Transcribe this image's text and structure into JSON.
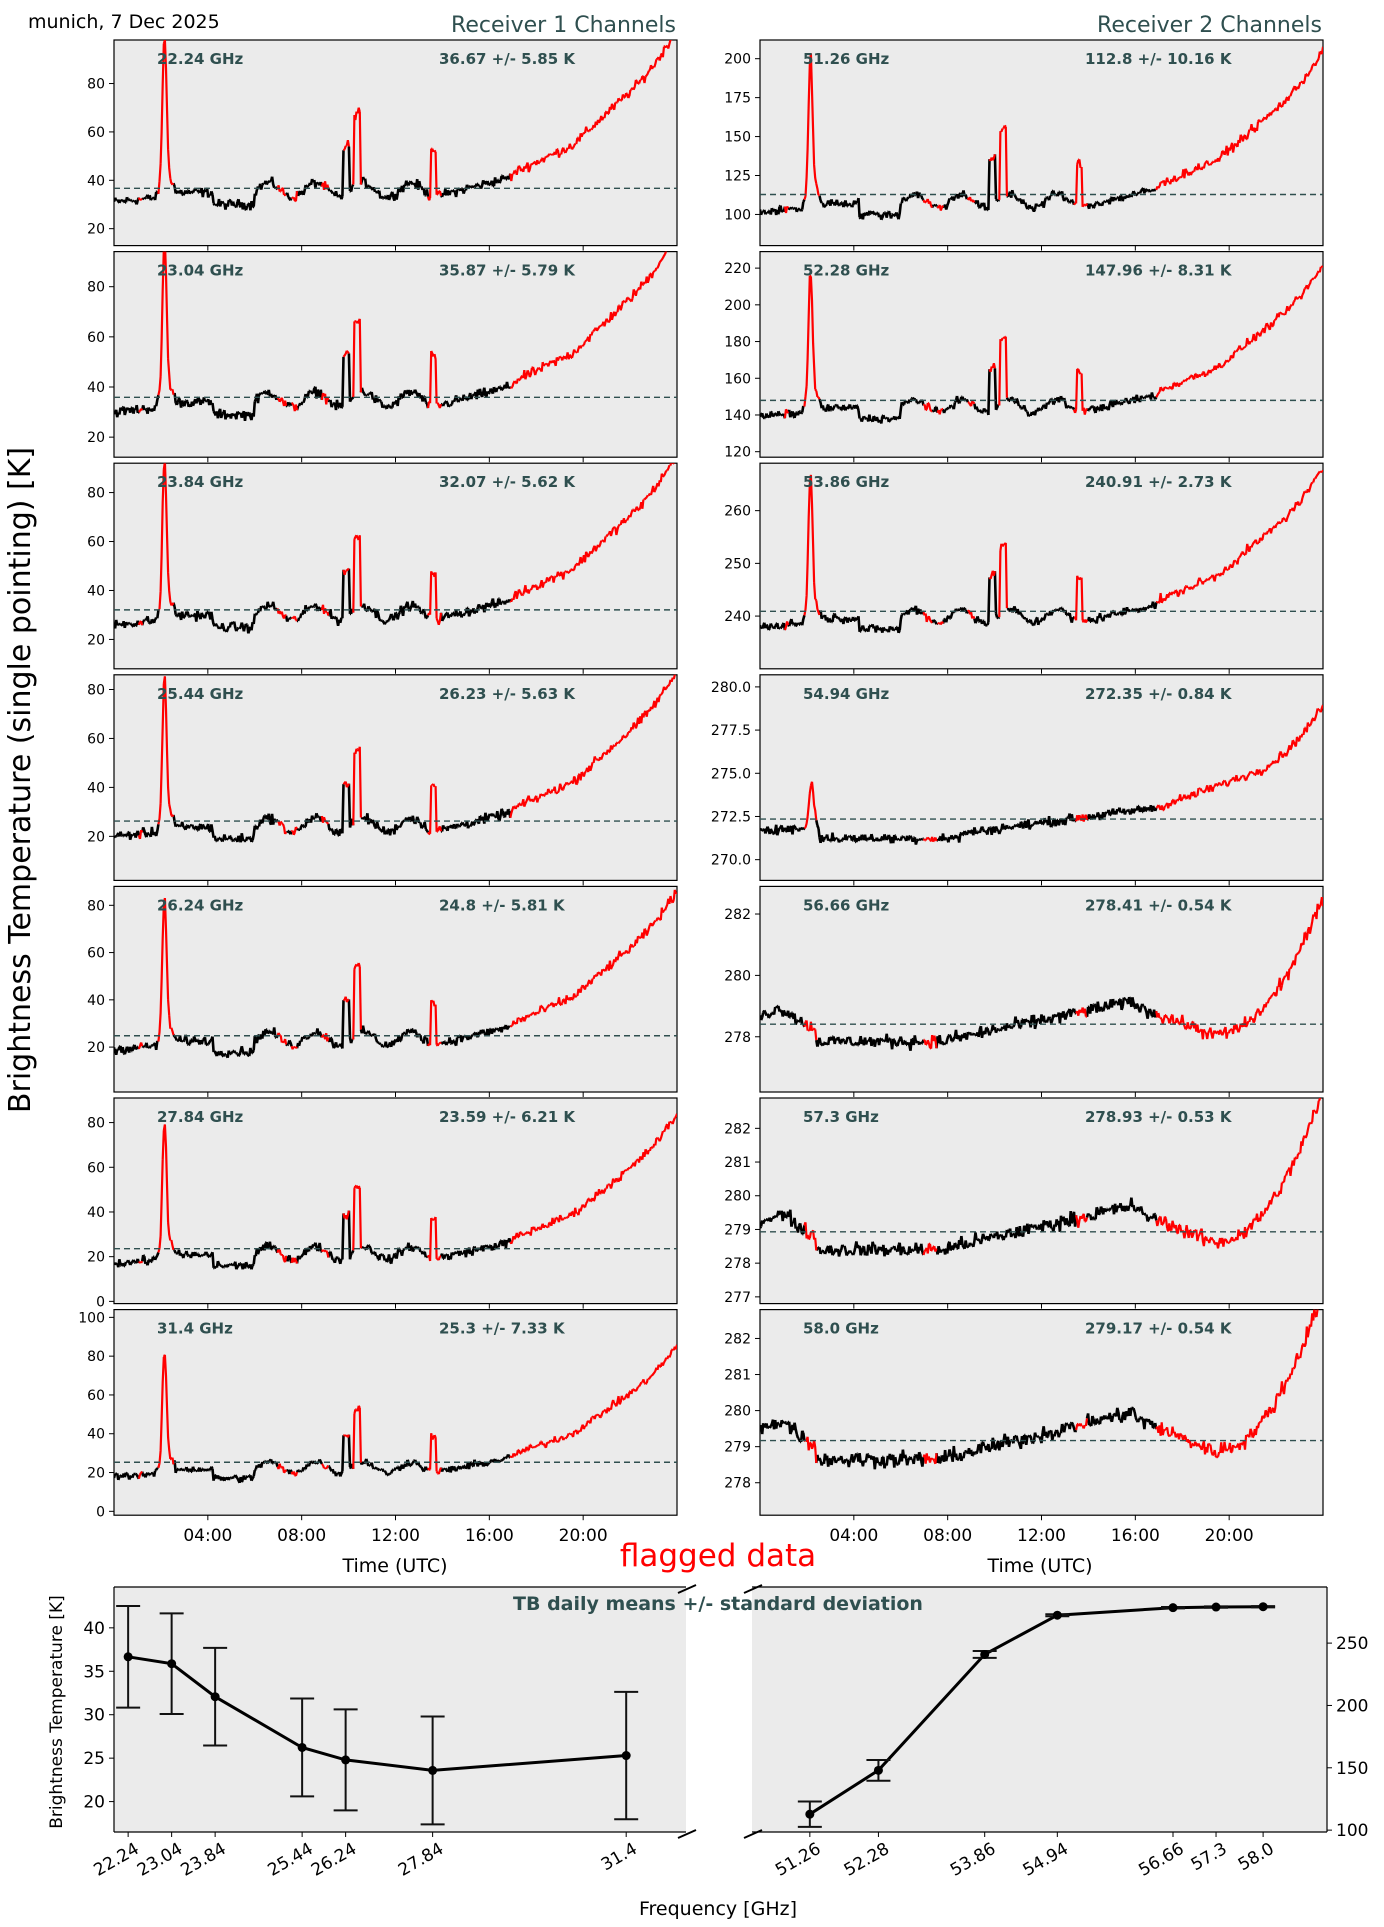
{
  "figure": {
    "location_date": "munich, 7 Dec 2025",
    "receiver1_title": "Receiver 1 Channels",
    "receiver2_title": "Receiver 2 Channels",
    "shared_ylabel": "Brightness Temperature (single pointing) [K]",
    "time_xlabel": "Time (UTC)",
    "time_ticks": [
      "04:00",
      "08:00",
      "12:00",
      "16:00",
      "20:00"
    ],
    "flagged_label": "flagged data",
    "colors": {
      "panel_bg": "#ebebeb",
      "valid_data": "#000000",
      "flagged_data": "#ff0000",
      "mean_line": "#2f4f4f",
      "annotation": "#2f4f4f"
    }
  },
  "chart_data": [
    {
      "type": "line",
      "title": "Receiver 1 Channels",
      "xlabel": "Time (UTC)",
      "ylabel": "Brightness Temperature (single pointing) [K]",
      "x_range_hours": [
        0,
        24
      ],
      "panels": [
        {
          "freq": "22.24 GHz",
          "stats": "36.67 +/- 5.85 K",
          "mean": 36.67,
          "ylim": [
            13,
            98
          ],
          "yticks": [
            20,
            40,
            60,
            80
          ],
          "base": 30,
          "offset": 0
        },
        {
          "freq": "23.04 GHz",
          "stats": "35.87 +/- 5.79 K",
          "mean": 35.87,
          "ylim": [
            12,
            94
          ],
          "yticks": [
            20,
            40,
            60,
            80
          ],
          "base": 29,
          "offset": -1
        },
        {
          "freq": "23.84 GHz",
          "stats": "32.07 +/- 5.62 K",
          "mean": 32.07,
          "ylim": [
            8,
            92
          ],
          "yticks": [
            20,
            40,
            60,
            80
          ],
          "base": 25,
          "offset": -5
        },
        {
          "freq": "25.44 GHz",
          "stats": "26.23 +/- 5.63 K",
          "mean": 26.23,
          "ylim": [
            2,
            86
          ],
          "yticks": [
            20,
            40,
            60,
            80
          ],
          "base": 19,
          "offset": -11
        },
        {
          "freq": "26.24 GHz",
          "stats": "24.8 +/- 5.81 K",
          "mean": 24.8,
          "ylim": [
            1,
            88
          ],
          "yticks": [
            20,
            40,
            60,
            80
          ],
          "base": 18,
          "offset": -12
        },
        {
          "freq": "27.84 GHz",
          "stats": "23.59 +/- 6.21 K",
          "mean": 23.59,
          "ylim": [
            -1,
            91
          ],
          "yticks": [
            0,
            20,
            40,
            60,
            80
          ],
          "base": 16,
          "offset": -13
        },
        {
          "freq": "31.4 GHz",
          "stats": "25.3 +/- 7.33 K",
          "mean": 25.3,
          "ylim": [
            -2,
            104
          ],
          "yticks": [
            0,
            20,
            40,
            60,
            80,
            100
          ],
          "base": 17,
          "offset": -12
        }
      ]
    },
    {
      "type": "line",
      "title": "Receiver 2 Channels",
      "xlabel": "Time (UTC)",
      "x_range_hours": [
        0,
        24
      ],
      "panels": [
        {
          "freq": "51.26 GHz",
          "stats": "112.8 +/- 10.16 K",
          "mean": 112.8,
          "ylim": [
            80,
            212
          ],
          "yticks": [
            100,
            125,
            150,
            175,
            200
          ],
          "kind": "wet",
          "base": 100,
          "scale": 1.45
        },
        {
          "freq": "52.28 GHz",
          "stats": "147.96 +/- 8.31 K",
          "mean": 147.96,
          "ylim": [
            117,
            229
          ],
          "yticks": [
            120,
            140,
            160,
            180,
            200,
            220
          ],
          "kind": "wet",
          "base": 138,
          "scale": 1.15
        },
        {
          "freq": "53.86 GHz",
          "stats": "240.91 +/- 2.73 K",
          "mean": 240.91,
          "ylim": [
            230,
            269
          ],
          "yticks": [
            240,
            250,
            260
          ],
          "kind": "wet",
          "base": 237.5,
          "scale": 0.42
        },
        {
          "freq": "54.94 GHz",
          "stats": "272.35 +/- 0.84 K",
          "mean": 272.35,
          "ylim": [
            268.8,
            280.7
          ],
          "yticks": [
            270.0,
            272.5,
            275.0,
            277.5,
            280.0
          ],
          "kind": "opaque",
          "base": 271.5,
          "scale": 0.9
        },
        {
          "freq": "56.66 GHz",
          "stats": "278.41 +/- 0.54 K",
          "mean": 278.41,
          "ylim": [
            276.2,
            282.9
          ],
          "yticks": [
            278,
            280,
            282
          ],
          "kind": "opaque2",
          "base": 278.4
        },
        {
          "freq": "57.3 GHz",
          "stats": "278.93 +/- 0.53 K",
          "mean": 278.93,
          "ylim": [
            276.8,
            282.9
          ],
          "yticks": [
            277,
            278,
            279,
            280,
            281,
            282
          ],
          "kind": "opaque2",
          "base": 278.95
        },
        {
          "freq": "58.0 GHz",
          "stats": "279.17 +/- 0.54 K",
          "mean": 279.17,
          "ylim": [
            277.1,
            282.8
          ],
          "yticks": [
            278,
            279,
            280,
            281,
            282
          ],
          "kind": "opaque2",
          "base": 279.2
        }
      ]
    },
    {
      "type": "line",
      "title": "TB daily means +/- standard deviation",
      "xlabel": "Frequency [GHz]",
      "ylabel": "Brightness Temperature [K]",
      "left": {
        "x": [
          22.24,
          23.04,
          23.84,
          25.44,
          26.24,
          27.84,
          31.4
        ],
        "xtick_labels": [
          "22.24",
          "23.04",
          "23.84",
          "25.44",
          "26.24",
          "27.84",
          "31.4"
        ],
        "y": [
          36.67,
          35.87,
          32.07,
          26.23,
          24.8,
          23.59,
          25.3
        ],
        "err": [
          5.85,
          5.79,
          5.62,
          5.63,
          5.81,
          6.21,
          7.33
        ],
        "xlim": [
          21.98,
          32.5
        ],
        "ylim": [
          16.5,
          44.7
        ],
        "yticks": [
          20,
          25,
          30,
          35,
          40
        ]
      },
      "right": {
        "x": [
          51.26,
          52.28,
          53.86,
          54.94,
          56.66,
          57.3,
          58.0
        ],
        "xtick_labels": [
          "51.26",
          "52.28",
          "53.86",
          "54.94",
          "56.66",
          "57.3",
          "58.0"
        ],
        "y": [
          112.8,
          147.96,
          240.91,
          272.35,
          278.41,
          278.93,
          279.17
        ],
        "err": [
          10.16,
          8.31,
          2.73,
          0.84,
          0.54,
          0.53,
          0.54
        ],
        "xlim": [
          50.4,
          58.95
        ],
        "ylim": [
          98.5,
          295
        ],
        "yticks": [
          100,
          150,
          200,
          250
        ]
      }
    }
  ]
}
